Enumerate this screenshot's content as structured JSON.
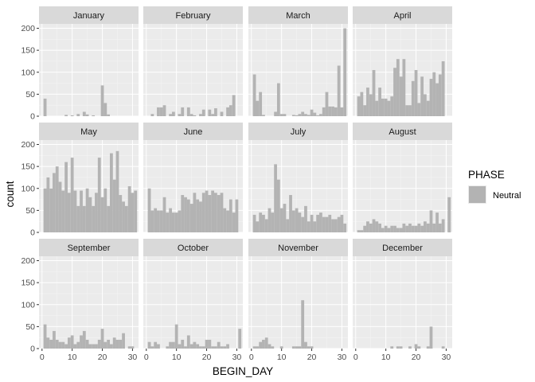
{
  "chart_data": {
    "type": "bar",
    "subtype": "histogram, faceted by month (3x4 grid)",
    "xlabel": "BEGIN_DAY",
    "ylabel": "count",
    "xlim": [
      -1,
      32
    ],
    "ylim": [
      0,
      210
    ],
    "x_ticks": [
      0,
      10,
      20,
      30
    ],
    "y_ticks": [
      0,
      50,
      100,
      150,
      200
    ],
    "grid": true,
    "bar_color": "#b3b3b3",
    "panel_background": "#ebebeb",
    "strip_background": "#d9d9d9",
    "legend": {
      "title": "PHASE",
      "position": "right",
      "entries": [
        {
          "label": "Neutral",
          "color": "#b3b3b3"
        }
      ]
    },
    "x": [
      1,
      2,
      3,
      4,
      5,
      6,
      7,
      8,
      9,
      10,
      11,
      12,
      13,
      14,
      15,
      16,
      17,
      18,
      19,
      20,
      21,
      22,
      23,
      24,
      25,
      26,
      27,
      28,
      29,
      30,
      31
    ],
    "facets": [
      {
        "label": "January",
        "values": [
          40,
          0,
          0,
          0,
          0,
          0,
          0,
          3,
          0,
          2,
          0,
          5,
          0,
          10,
          4,
          0,
          2,
          0,
          0,
          70,
          30,
          4,
          0,
          0,
          0,
          0,
          0,
          0,
          0,
          0,
          0
        ]
      },
      {
        "label": "February",
        "values": [
          0,
          5,
          0,
          20,
          20,
          25,
          0,
          5,
          10,
          0,
          5,
          20,
          0,
          20,
          5,
          2,
          0,
          5,
          15,
          0,
          15,
          5,
          18,
          0,
          10,
          0,
          20,
          25,
          48,
          0,
          0
        ]
      },
      {
        "label": "March",
        "values": [
          95,
          35,
          55,
          3,
          0,
          0,
          0,
          10,
          75,
          5,
          5,
          0,
          0,
          3,
          2,
          5,
          10,
          5,
          3,
          15,
          8,
          2,
          5,
          20,
          55,
          22,
          22,
          20,
          115,
          20,
          200
        ]
      },
      {
        "label": "April",
        "values": [
          45,
          55,
          25,
          65,
          50,
          105,
          35,
          65,
          40,
          40,
          35,
          45,
          110,
          130,
          90,
          130,
          25,
          25,
          80,
          105,
          30,
          90,
          50,
          35,
          85,
          100,
          75,
          95,
          125,
          0,
          0
        ]
      },
      {
        "label": "May",
        "values": [
          100,
          125,
          100,
          135,
          150,
          115,
          95,
          160,
          90,
          170,
          95,
          60,
          95,
          60,
          100,
          80,
          60,
          90,
          170,
          80,
          100,
          60,
          180,
          120,
          185,
          85,
          70,
          60,
          105,
          90,
          95
        ]
      },
      {
        "label": "June",
        "values": [
          100,
          50,
          55,
          50,
          50,
          80,
          45,
          55,
          45,
          45,
          50,
          85,
          80,
          75,
          65,
          90,
          75,
          70,
          90,
          95,
          85,
          95,
          90,
          85,
          90,
          55,
          50,
          75,
          45,
          75,
          0
        ]
      },
      {
        "label": "July",
        "values": [
          40,
          25,
          45,
          40,
          30,
          55,
          45,
          155,
          120,
          55,
          65,
          30,
          85,
          50,
          55,
          45,
          35,
          60,
          25,
          40,
          25,
          40,
          45,
          35,
          35,
          40,
          30,
          30,
          35,
          40,
          20
        ]
      },
      {
        "label": "August",
        "values": [
          5,
          5,
          15,
          25,
          20,
          30,
          25,
          20,
          10,
          15,
          10,
          15,
          15,
          10,
          10,
          20,
          15,
          20,
          15,
          15,
          20,
          15,
          25,
          20,
          50,
          20,
          45,
          20,
          30,
          0,
          80
        ]
      },
      {
        "label": "September",
        "values": [
          55,
          25,
          20,
          40,
          20,
          15,
          15,
          10,
          25,
          30,
          10,
          15,
          30,
          40,
          20,
          10,
          10,
          10,
          20,
          45,
          15,
          20,
          10,
          25,
          20,
          20,
          35,
          0,
          5,
          5,
          0
        ]
      },
      {
        "label": "October",
        "values": [
          15,
          5,
          15,
          10,
          0,
          0,
          5,
          15,
          15,
          55,
          10,
          20,
          5,
          30,
          10,
          15,
          10,
          5,
          5,
          20,
          20,
          5,
          5,
          15,
          5,
          5,
          10,
          0,
          0,
          0,
          45
        ]
      },
      {
        "label": "November",
        "values": [
          5,
          5,
          15,
          20,
          25,
          10,
          5,
          0,
          0,
          5,
          0,
          0,
          0,
          5,
          5,
          5,
          110,
          15,
          5,
          5,
          0,
          0,
          0,
          0,
          0,
          0,
          0,
          0,
          0,
          0,
          0
        ]
      },
      {
        "label": "December",
        "values": [
          0,
          0,
          0,
          0,
          0,
          0,
          0,
          0,
          0,
          0,
          0,
          5,
          0,
          5,
          5,
          0,
          0,
          5,
          0,
          10,
          5,
          0,
          0,
          5,
          50,
          0,
          0,
          0,
          5,
          0,
          0
        ]
      }
    ]
  }
}
